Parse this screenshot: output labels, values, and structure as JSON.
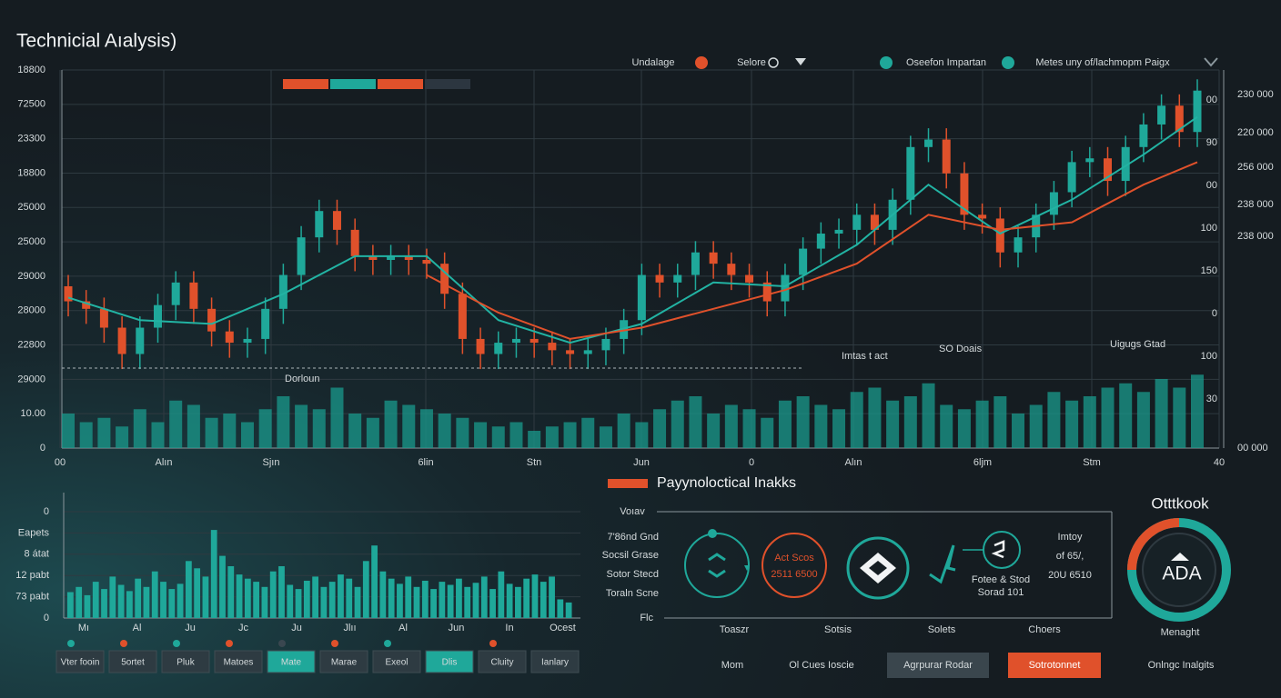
{
  "header": {
    "title": "Technicial Aıalysis)"
  },
  "legend": [
    {
      "name": "Undalage",
      "color": "#e0512b"
    },
    {
      "name": "Selore"
    },
    {
      "name": "Oseefon Impartan",
      "color": "#1fa89a"
    },
    {
      "name": "Metes uny of/lachmopm Paigx"
    }
  ],
  "tabs": [
    "#e0512b",
    "#1fa89a",
    "#e0512b",
    "#2c3640"
  ],
  "chart_data": [
    {
      "type": "candlestick",
      "x_labels": [
        "00",
        "Alın",
        "Sjın",
        "6lin",
        "Stn",
        "Jun",
        "0",
        "Alın",
        "6ljm",
        "Stm",
        "40"
      ],
      "y_labels": [
        "18800",
        "72500",
        "23300",
        "18800",
        "25000",
        "25000",
        "29000",
        "28000",
        "22800",
        "29000",
        "10.00",
        "0"
      ],
      "y_right_labels": [
        "00",
        "90",
        "00",
        "100",
        "150",
        "0",
        "100",
        "30"
      ],
      "y_right2_labels": [
        "230 000",
        "220 000",
        "256 000",
        "238 000",
        "238 000",
        "00 000"
      ],
      "annotations": [
        "Dorloun",
        "Imtas t act",
        "SO Doais",
        "Uigugs Gtad"
      ],
      "ylim": [
        0,
        100
      ],
      "grid": true,
      "up_color": "#1fa89a",
      "down_color": "#e0512b",
      "open": [
        43,
        39,
        37,
        32,
        25,
        32,
        38,
        44,
        37,
        31,
        28,
        29,
        37,
        46,
        56,
        63,
        58,
        51,
        50,
        51,
        50,
        49,
        41,
        29,
        25,
        28,
        29,
        28,
        26,
        25,
        26,
        29,
        34,
        46,
        44,
        46,
        52,
        49,
        46,
        44,
        39,
        46,
        53,
        57,
        58,
        62,
        58,
        66,
        80,
        82,
        73,
        62,
        61,
        52,
        56,
        62,
        68,
        76,
        77,
        71,
        80,
        86,
        91,
        84
      ],
      "high": [
        46,
        42,
        40,
        35,
        35,
        41,
        47,
        47,
        40,
        34,
        32,
        40,
        49,
        59,
        66,
        66,
        61,
        54,
        54,
        54,
        53,
        52,
        44,
        32,
        31,
        32,
        32,
        31,
        29,
        29,
        32,
        37,
        49,
        49,
        49,
        55,
        55,
        52,
        49,
        47,
        49,
        56,
        60,
        61,
        65,
        65,
        69,
        83,
        85,
        85,
        76,
        65,
        64,
        59,
        65,
        71,
        79,
        80,
        80,
        83,
        89,
        94,
        94,
        98
      ],
      "low": [
        35,
        33,
        28,
        21,
        21,
        28,
        34,
        33,
        27,
        24,
        24,
        25,
        33,
        42,
        52,
        54,
        47,
        46,
        46,
        46,
        45,
        37,
        25,
        21,
        21,
        24,
        24,
        22,
        21,
        21,
        22,
        25,
        30,
        40,
        40,
        42,
        45,
        42,
        40,
        35,
        35,
        42,
        49,
        53,
        54,
        54,
        54,
        62,
        76,
        69,
        58,
        57,
        48,
        48,
        52,
        58,
        64,
        72,
        67,
        67,
        76,
        82,
        80,
        80
      ],
      "close": [
        39,
        37,
        32,
        25,
        32,
        38,
        44,
        37,
        31,
        28,
        29,
        37,
        46,
        56,
        63,
        58,
        51,
        50,
        51,
        50,
        49,
        41,
        29,
        25,
        28,
        29,
        28,
        26,
        25,
        26,
        29,
        34,
        46,
        44,
        46,
        52,
        49,
        46,
        44,
        39,
        46,
        53,
        57,
        58,
        62,
        58,
        66,
        80,
        82,
        73,
        62,
        61,
        52,
        56,
        62,
        68,
        76,
        77,
        71,
        80,
        86,
        91,
        84,
        95
      ],
      "lines": [
        {
          "color": "#22b3a3",
          "x": [
            0,
            4,
            8,
            12,
            16,
            20,
            24,
            28,
            32,
            36,
            40,
            44,
            48,
            52,
            56,
            60,
            63
          ],
          "values": [
            40,
            34,
            33,
            41,
            51,
            51,
            34,
            28,
            33,
            44,
            43,
            54,
            70,
            57,
            66,
            78,
            88
          ]
        },
        {
          "color": "#e0512b",
          "x": [
            20,
            24,
            28,
            32,
            36,
            40,
            44,
            48,
            52,
            56,
            60,
            63
          ],
          "values": [
            46,
            36,
            29,
            32,
            37,
            42,
            49,
            62,
            58,
            60,
            70,
            76
          ]
        }
      ],
      "volume": [
        40,
        30,
        35,
        25,
        45,
        30,
        55,
        50,
        35,
        40,
        30,
        45,
        60,
        50,
        45,
        70,
        40,
        35,
        55,
        50,
        45,
        40,
        35,
        30,
        25,
        30,
        20,
        25,
        30,
        35,
        25,
        40,
        30,
        45,
        55,
        60,
        40,
        50,
        45,
        35,
        55,
        60,
        50,
        45,
        65,
        70,
        55,
        60,
        75,
        50,
        45,
        55,
        60,
        40,
        50,
        65,
        55,
        60,
        70,
        75,
        65,
        80,
        70,
        85
      ],
      "volume_lim": [
        0,
        100
      ],
      "volume_color": "#1a9a8c"
    },
    {
      "type": "bar",
      "x_labels": [
        "Mı",
        "Al",
        "Ju",
        "Jc",
        "Ju",
        "Jlıı",
        "Al",
        "Jun",
        "In",
        "Ocest"
      ],
      "y_labels": [
        "0",
        "Eapets",
        "8 átat",
        "12 pabt",
        "73 pabt",
        "0"
      ],
      "ylim": [
        0,
        100
      ],
      "color": "#1fa89a",
      "values": [
        25,
        30,
        22,
        35,
        28,
        40,
        32,
        26,
        38,
        30,
        45,
        35,
        28,
        33,
        55,
        48,
        40,
        85,
        60,
        50,
        42,
        38,
        35,
        30,
        45,
        50,
        32,
        28,
        36,
        40,
        30,
        35,
        42,
        38,
        30,
        55,
        70,
        45,
        38,
        33,
        40,
        30,
        36,
        28,
        35,
        32,
        38,
        30,
        34,
        40,
        28,
        45,
        33,
        30,
        38,
        42,
        35,
        40,
        18,
        15
      ]
    }
  ],
  "buttons": [
    {
      "label": "Vter fooin",
      "active": false,
      "dot": "#1fa89a"
    },
    {
      "label": "5ortet",
      "active": false,
      "dot": "#e0512b"
    },
    {
      "label": "Pluk",
      "active": false,
      "dot": "#1fa89a"
    },
    {
      "label": "Matoes",
      "active": false,
      "dot": "#e0512b"
    },
    {
      "label": "Mate",
      "active": true,
      "dot": "#3a4750"
    },
    {
      "label": "Marae",
      "active": false,
      "dot": "#e0512b"
    },
    {
      "label": "Exeol",
      "active": false,
      "dot": "#1fa89a"
    },
    {
      "label": "Dlis",
      "active": true,
      "dot": null
    },
    {
      "label": "Cluity",
      "active": false,
      "dot": "#e0512b"
    },
    {
      "label": "Ianlary",
      "active": false,
      "dot": null
    }
  ],
  "insights": {
    "title": "Payynoloctical Inakks",
    "axis_top": "Voıav",
    "axis_bottom": "Flc",
    "row_labels": [
      "7'86nd Gnd",
      "Socsil Grase",
      "Sotor Stecd",
      "Toraln Scne"
    ],
    "orange_circle": [
      "Act Scos",
      "2511 6500"
    ],
    "right_item": [
      "Fotee & Stod",
      "Sorad 101"
    ],
    "far_right": [
      "Imtoy",
      "of 65/,",
      "20U 6510"
    ],
    "column_labels": [
      "Toaszr",
      "Sotsis",
      "Solets",
      "Choers"
    ]
  },
  "outlook": {
    "title": "Otttkook",
    "center": "ADA",
    "caption": "Menaght"
  },
  "bottom_bar": {
    "items": [
      "Mom",
      "Ol Cues Ioscie"
    ],
    "buttons": [
      "Agrpurar Rodar",
      "Sotrotonnet"
    ],
    "right": "Onlngc Inalgits"
  }
}
